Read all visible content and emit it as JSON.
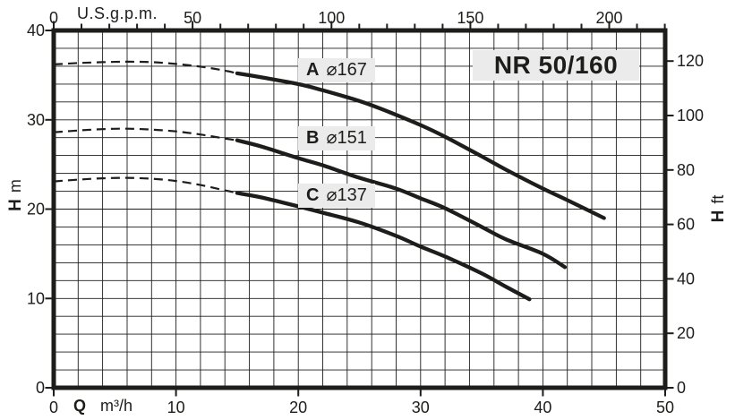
{
  "chart_data": {
    "type": "line",
    "title": "NR 50/160",
    "axes": {
      "top": {
        "unit": "U.S.g.p.m.",
        "tick_labels": [
          0,
          50,
          100,
          150,
          200
        ],
        "minor_step_gpm": 10,
        "max_gpm": 220,
        "gpm_per_m3h": 4.40287
      },
      "bottom": {
        "symbol": "Q",
        "unit": "m³/h",
        "tick_labels": [
          0,
          10,
          20,
          30,
          40,
          50
        ],
        "range": [
          0,
          50
        ],
        "grid_step": 2
      },
      "left": {
        "symbol": "H",
        "unit": "m",
        "tick_labels": [
          0,
          10,
          20,
          30,
          40
        ],
        "range": [
          0,
          40
        ],
        "grid_step": 2
      },
      "right": {
        "symbol": "H",
        "unit": "ft",
        "tick_labels": [
          0,
          20,
          40,
          60,
          80,
          100,
          120
        ],
        "m_per_ft": 0.3048
      }
    },
    "grid": true,
    "legend_position": "on-curve",
    "series": [
      {
        "id": "A",
        "label": "A",
        "diameter": "⌀167",
        "dashed": [
          [
            0,
            36.2
          ],
          [
            2,
            36.35
          ],
          [
            4,
            36.45
          ],
          [
            6,
            36.5
          ],
          [
            8,
            36.45
          ],
          [
            10,
            36.25
          ],
          [
            12,
            35.95
          ],
          [
            14,
            35.5
          ],
          [
            15,
            35.2
          ]
        ],
        "solid": [
          [
            15,
            35.2
          ],
          [
            17,
            34.75
          ],
          [
            20,
            34.0
          ],
          [
            22,
            33.3
          ],
          [
            25,
            32.1
          ],
          [
            27,
            31.1
          ],
          [
            30,
            29.4
          ],
          [
            32,
            28.1
          ],
          [
            35,
            25.9
          ],
          [
            37,
            24.4
          ],
          [
            40,
            22.3
          ],
          [
            42,
            21.0
          ],
          [
            45,
            19.0
          ]
        ]
      },
      {
        "id": "B",
        "label": "B",
        "diameter": "⌀151",
        "dashed": [
          [
            0,
            28.6
          ],
          [
            2,
            28.8
          ],
          [
            4,
            28.95
          ],
          [
            6,
            29.0
          ],
          [
            8,
            28.9
          ],
          [
            10,
            28.7
          ],
          [
            12,
            28.35
          ],
          [
            14,
            27.9
          ],
          [
            15,
            27.7
          ]
        ],
        "solid": [
          [
            15,
            27.7
          ],
          [
            17,
            27.0
          ],
          [
            20,
            25.7
          ],
          [
            22,
            24.9
          ],
          [
            25,
            23.5
          ],
          [
            28,
            22.3
          ],
          [
            30,
            21.2
          ],
          [
            32,
            20.1
          ],
          [
            35,
            18.0
          ],
          [
            37,
            16.6
          ],
          [
            40,
            15.0
          ],
          [
            41.8,
            13.5
          ]
        ]
      },
      {
        "id": "C",
        "label": "C",
        "diameter": "⌀137",
        "dashed": [
          [
            0,
            23.1
          ],
          [
            2,
            23.3
          ],
          [
            4,
            23.45
          ],
          [
            6,
            23.5
          ],
          [
            8,
            23.4
          ],
          [
            10,
            23.15
          ],
          [
            12,
            22.7
          ],
          [
            14,
            22.1
          ],
          [
            15,
            21.8
          ]
        ],
        "solid": [
          [
            15,
            21.8
          ],
          [
            17,
            21.3
          ],
          [
            20,
            20.3
          ],
          [
            22,
            19.6
          ],
          [
            25,
            18.5
          ],
          [
            28,
            17.0
          ],
          [
            30,
            15.8
          ],
          [
            32,
            14.7
          ],
          [
            35,
            12.8
          ],
          [
            37,
            11.3
          ],
          [
            38.9,
            9.9
          ]
        ]
      }
    ],
    "colors": {
      "ink": "#1d1d1b",
      "label_bg": "#ebebeb",
      "background": "#ffffff"
    }
  }
}
